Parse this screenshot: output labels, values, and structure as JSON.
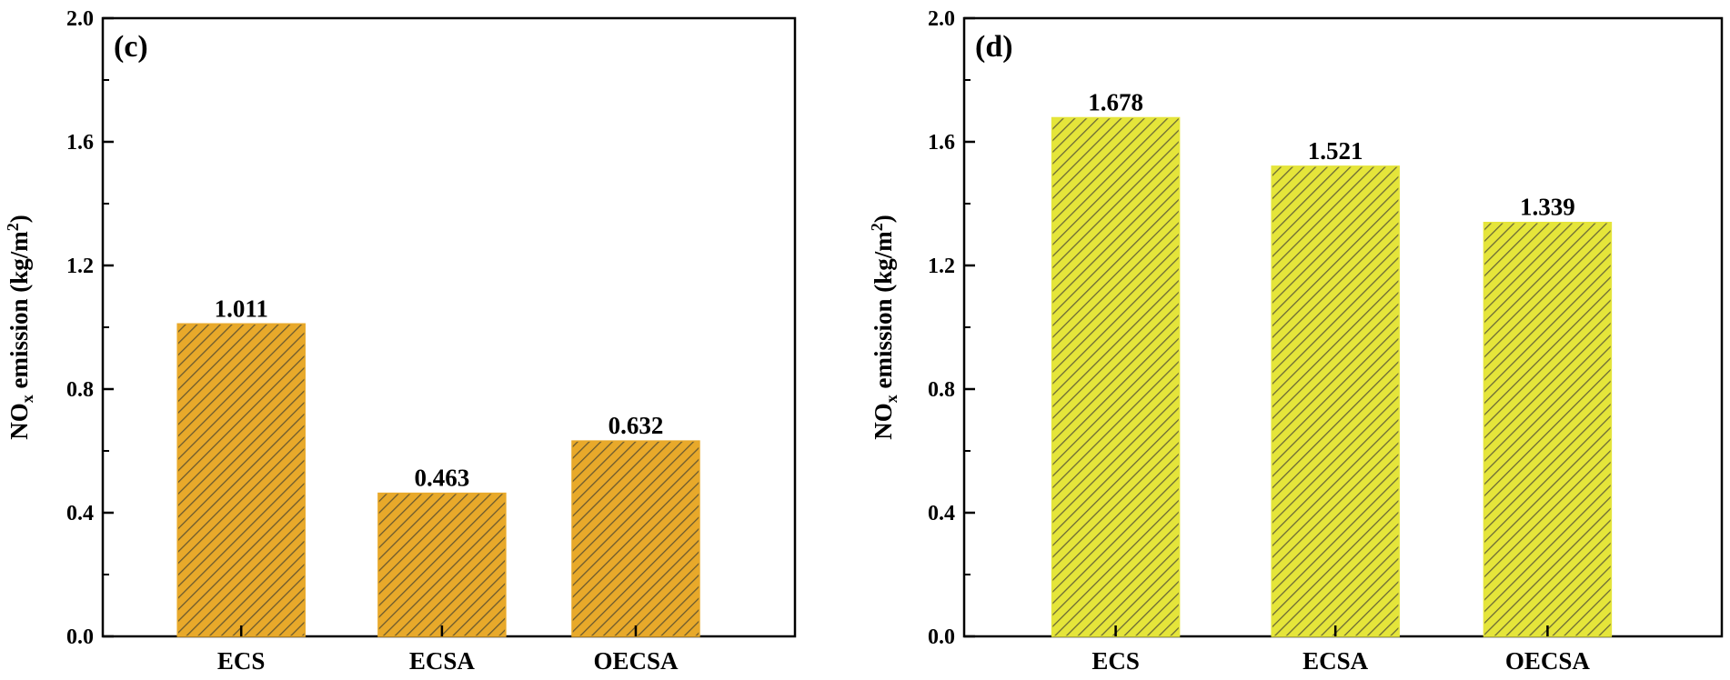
{
  "chart_data": [
    {
      "type": "bar",
      "panel_label": "(c)",
      "categories": [
        "ECS",
        "ECSA",
        "OECSA"
      ],
      "values": [
        1.011,
        0.463,
        0.632
      ],
      "value_labels": [
        "1.011",
        "0.463",
        "0.632"
      ],
      "ylabel": {
        "main": "NO",
        "sub": "x",
        "rest": " emission (kg/m",
        "sup": "2",
        "close": ")"
      },
      "ylim": [
        0.0,
        2.0
      ],
      "yticks": [
        "0.0",
        "0.4",
        "0.8",
        "1.2",
        "1.6",
        "2.0"
      ],
      "bar_color": "#e8a92a",
      "hatch_color": "#6b5a2f"
    },
    {
      "type": "bar",
      "panel_label": "(d)",
      "categories": [
        "ECS",
        "ECSA",
        "OECSA"
      ],
      "values": [
        1.678,
        1.521,
        1.339
      ],
      "value_labels": [
        "1.678",
        "1.521",
        "1.339"
      ],
      "ylabel": {
        "main": "NO",
        "sub": "x",
        "rest": " emission (kg/m",
        "sup": "2",
        "close": ")"
      },
      "ylim": [
        0.0,
        2.0
      ],
      "yticks": [
        "0.0",
        "0.4",
        "0.8",
        "1.2",
        "1.6",
        "2.0"
      ],
      "bar_color": "#e5e53a",
      "hatch_color": "#6b6a36"
    }
  ]
}
